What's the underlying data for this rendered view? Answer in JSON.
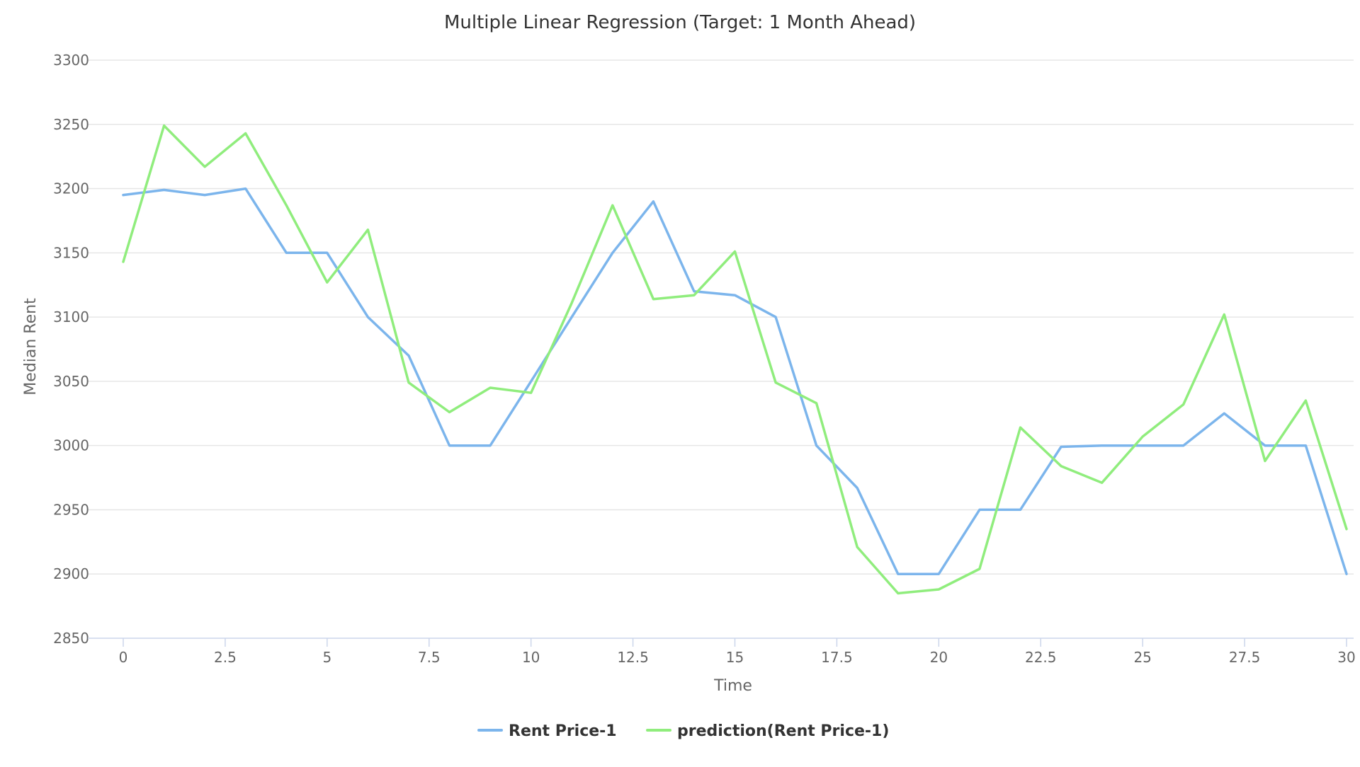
{
  "chart_data": {
    "type": "line",
    "title": "Multiple Linear Regression (Target: 1 Month Ahead)",
    "xlabel": "Time",
    "ylabel": "Median Rent",
    "xlim": [
      0,
      30
    ],
    "ylim": [
      2850,
      3300
    ],
    "x_ticks": [
      0,
      2.5,
      5,
      7.5,
      10,
      12.5,
      15,
      17.5,
      20,
      22.5,
      25,
      27.5,
      30
    ],
    "x_tick_labels": [
      "0",
      "2.5",
      "5",
      "7.5",
      "10",
      "12.5",
      "15",
      "17.5",
      "20",
      "22.5",
      "25",
      "27.5",
      "30"
    ],
    "y_ticks": [
      2850,
      2900,
      2950,
      3000,
      3050,
      3100,
      3150,
      3200,
      3250,
      3300
    ],
    "y_tick_labels": [
      "2850",
      "2900",
      "2950",
      "3000",
      "3050",
      "3100",
      "3150",
      "3200",
      "3250",
      "3300"
    ],
    "grid": true,
    "legend": "bottom-center",
    "x": [
      0,
      1,
      2,
      3,
      4,
      5,
      6,
      7,
      8,
      9,
      10,
      11,
      12,
      13,
      14,
      15,
      16,
      17,
      18,
      19,
      20,
      21,
      22,
      23,
      24,
      25,
      26,
      27,
      28,
      29,
      30
    ],
    "series": [
      {
        "name": "Rent Price-1",
        "color": "#7cb5ec",
        "values": [
          3195,
          3199,
          3195,
          3200,
          3150,
          3150,
          3100,
          3070,
          3000,
          3000,
          3050,
          3100,
          3150,
          3190,
          3120,
          3117,
          3100,
          3000,
          2967,
          2900,
          2900,
          2950,
          2950,
          2999,
          3000,
          3000,
          3000,
          3025,
          3000,
          3000,
          2900
        ]
      },
      {
        "name": "prediction(Rent Price-1)",
        "color": "#90ed7d",
        "values": [
          3143,
          3249,
          3217,
          3243,
          3187,
          3127,
          3168,
          3049,
          3026,
          3045,
          3041,
          3111,
          3187,
          3114,
          3117,
          3151,
          3049,
          3033,
          2921,
          2885,
          2888,
          2904,
          3014,
          2984,
          2971,
          3007,
          3032,
          3102,
          2988,
          3035,
          2935
        ]
      }
    ]
  }
}
